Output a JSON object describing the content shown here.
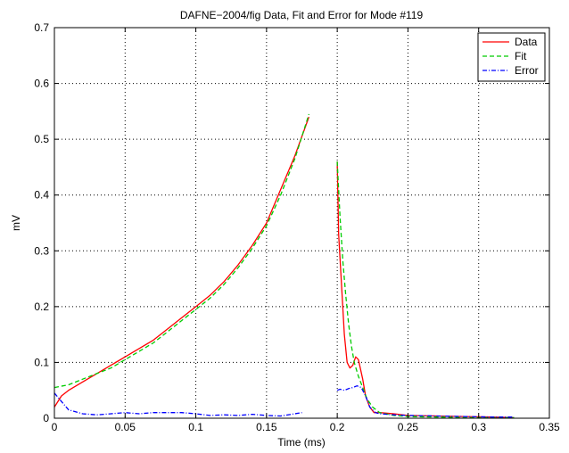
{
  "chart_data": {
    "type": "line",
    "title": "DAFNE−2004/fig    Data, Fit and Error for Mode #119",
    "xlabel": "Time  (ms)",
    "ylabel": "mV",
    "xlim": [
      0,
      0.35
    ],
    "ylim": [
      0,
      0.7
    ],
    "xticks": [
      0,
      0.05,
      0.1,
      0.15,
      0.2,
      0.25,
      0.3,
      0.35
    ],
    "xtick_labels": [
      "0",
      "0.05",
      "0.1",
      "0.15",
      "0.2",
      "0.25",
      "0.3",
      "0.35"
    ],
    "yticks": [
      0,
      0.1,
      0.2,
      0.3,
      0.4,
      0.5,
      0.6,
      0.7
    ],
    "ytick_labels": [
      "0",
      "0.1",
      "0.2",
      "0.3",
      "0.4",
      "0.5",
      "0.6",
      "0.7"
    ],
    "grid": true,
    "legend_position": "top-right",
    "series": [
      {
        "name": "Data",
        "color": "#ff0000",
        "style": "solid",
        "segments": [
          {
            "x": [
              0,
              0.005,
              0.01,
              0.02,
              0.03,
              0.04,
              0.05,
              0.06,
              0.07,
              0.08,
              0.09,
              0.1,
              0.11,
              0.12,
              0.13,
              0.14,
              0.15,
              0.16,
              0.17,
              0.18
            ],
            "y": [
              0.02,
              0.04,
              0.05,
              0.065,
              0.08,
              0.095,
              0.11,
              0.125,
              0.14,
              0.16,
              0.18,
              0.2,
              0.22,
              0.245,
              0.275,
              0.31,
              0.35,
              0.41,
              0.47,
              0.54
            ]
          },
          {
            "x": [
              0.2,
              0.201,
              0.203,
              0.205,
              0.207,
              0.209,
              0.211,
              0.213,
              0.215,
              0.218,
              0.22,
              0.223,
              0.226,
              0.23,
              0.24,
              0.25,
              0.27,
              0.29,
              0.31,
              0.325
            ],
            "y": [
              0.46,
              0.33,
              0.24,
              0.15,
              0.1,
              0.09,
              0.095,
              0.11,
              0.105,
              0.07,
              0.04,
              0.02,
              0.01,
              0.01,
              0.008,
              0.005,
              0.004,
              0.003,
              0.002,
              0.001
            ]
          }
        ]
      },
      {
        "name": "Fit",
        "color": "#00cc00",
        "style": "dashed",
        "segments": [
          {
            "x": [
              0,
              0.01,
              0.02,
              0.03,
              0.04,
              0.05,
              0.06,
              0.07,
              0.08,
              0.09,
              0.1,
              0.11,
              0.12,
              0.13,
              0.14,
              0.15,
              0.16,
              0.17,
              0.18
            ],
            "y": [
              0.055,
              0.06,
              0.07,
              0.08,
              0.09,
              0.105,
              0.12,
              0.135,
              0.155,
              0.175,
              0.195,
              0.215,
              0.24,
              0.27,
              0.305,
              0.345,
              0.4,
              0.465,
              0.545
            ]
          },
          {
            "x": [
              0.2,
              0.202,
              0.204,
              0.206,
              0.208,
              0.21,
              0.212,
              0.215,
              0.218,
              0.221,
              0.225,
              0.23,
              0.24,
              0.25,
              0.27,
              0.29,
              0.31,
              0.325
            ],
            "y": [
              0.46,
              0.36,
              0.28,
              0.22,
              0.17,
              0.13,
              0.1,
              0.075,
              0.055,
              0.035,
              0.02,
              0.01,
              0.005,
              0.003,
              0.002,
              0.001,
              0.001,
              0.001
            ]
          }
        ]
      },
      {
        "name": "Error",
        "color": "#0000ff",
        "style": "dashdot",
        "segments": [
          {
            "x": [
              0,
              0.005,
              0.01,
              0.02,
              0.03,
              0.04,
              0.05,
              0.06,
              0.07,
              0.08,
              0.09,
              0.1,
              0.11,
              0.12,
              0.13,
              0.14,
              0.15,
              0.16,
              0.17,
              0.175
            ],
            "y": [
              0.045,
              0.03,
              0.015,
              0.008,
              0.006,
              0.008,
              0.01,
              0.008,
              0.01,
              0.01,
              0.01,
              0.008,
              0.005,
              0.006,
              0.005,
              0.007,
              0.005,
              0.004,
              0.008,
              0.01
            ]
          },
          {
            "x": [
              0.2,
              0.202,
              0.205,
              0.208,
              0.211,
              0.214,
              0.217,
              0.22,
              0.223,
              0.227,
              0.23,
              0.24,
              0.25,
              0.27,
              0.29,
              0.31,
              0.325
            ],
            "y": [
              0.05,
              0.052,
              0.05,
              0.053,
              0.055,
              0.058,
              0.055,
              0.04,
              0.02,
              0.01,
              0.008,
              0.006,
              0.005,
              0.004,
              0.003,
              0.002,
              0.002
            ]
          }
        ]
      }
    ]
  }
}
